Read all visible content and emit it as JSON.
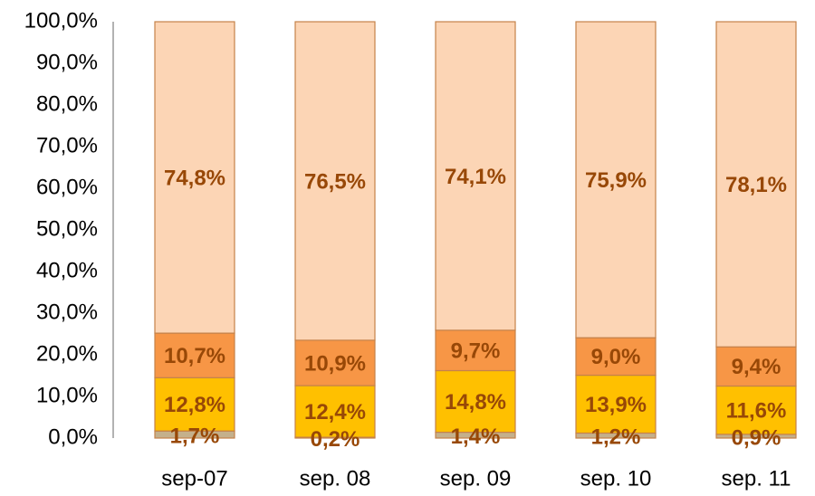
{
  "chart_data": {
    "type": "stacked_bar",
    "categories": [
      "sep-07",
      "sep. 08",
      "sep. 09",
      "sep. 10",
      "sep. 11"
    ],
    "series": [
      {
        "color": "#c4b08c",
        "values": [
          1.7,
          0.2,
          1.4,
          1.2,
          0.9
        ],
        "value_labels": [
          "1,7%",
          "0,2%",
          "1,4%",
          "1,2%",
          "0,9%"
        ]
      },
      {
        "color": "#ffc000",
        "values": [
          12.8,
          12.4,
          14.8,
          13.9,
          11.6
        ],
        "value_labels": [
          "12,8%",
          "12,4%",
          "14,8%",
          "13,9%",
          "11,6%"
        ]
      },
      {
        "color": "#f79646",
        "values": [
          10.7,
          10.9,
          9.7,
          9.0,
          9.4
        ],
        "value_labels": [
          "10,7%",
          "10,9%",
          "9,7%",
          "9,0%",
          "9,4%"
        ]
      },
      {
        "color": "#fcd5b5",
        "values": [
          74.8,
          76.5,
          74.1,
          75.9,
          78.1
        ],
        "value_labels": [
          "74,8%",
          "76,5%",
          "74,1%",
          "75,9%",
          "78,1%"
        ]
      }
    ],
    "ylim": [
      0,
      100
    ],
    "yticks": [
      {
        "value": 0,
        "label": "0,0%"
      },
      {
        "value": 10,
        "label": "10,0%"
      },
      {
        "value": 20,
        "label": "20,0%"
      },
      {
        "value": 30,
        "label": "30,0%"
      },
      {
        "value": 40,
        "label": "40,0%"
      },
      {
        "value": 50,
        "label": "50,0%"
      },
      {
        "value": 60,
        "label": "60,0%"
      },
      {
        "value": 70,
        "label": "70,0%"
      },
      {
        "value": 80,
        "label": "80,0%"
      },
      {
        "value": 90,
        "label": "90,0%"
      },
      {
        "value": 100,
        "label": "100,0%"
      }
    ],
    "grid": false
  }
}
